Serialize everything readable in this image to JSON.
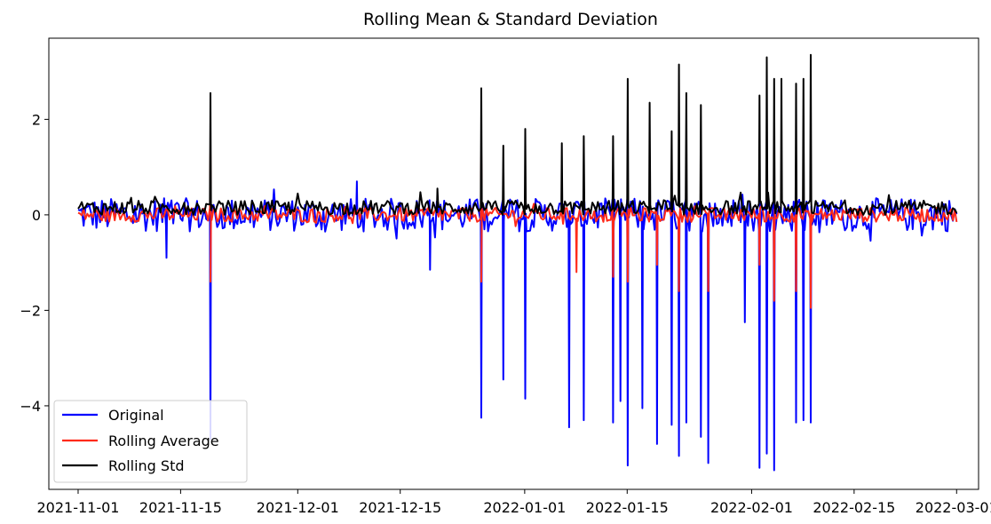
{
  "chart_data": {
    "type": "line",
    "title": "Rolling Mean & Standard Deviation",
    "xlabel": "",
    "ylabel": "",
    "x_range": [
      "2021-10-28",
      "2022-03-04"
    ],
    "ylim": [
      -5.75,
      3.7
    ],
    "x_ticks": [
      "2021-11-01",
      "2021-11-15",
      "2021-12-01",
      "2021-12-15",
      "2022-01-01",
      "2022-01-15",
      "2022-02-01",
      "2022-02-15",
      "2022-03-01"
    ],
    "y_ticks": [
      2,
      0,
      -2,
      -4
    ],
    "y_tick_labels": [
      "2",
      "0",
      "−2",
      "−4"
    ],
    "grid": false,
    "legend_position": "lower-left",
    "series": [
      {
        "name": "Original",
        "color": "#0000ff",
        "noise_range": [
          -0.35,
          0.35
        ],
        "spikes": [
          {
            "date": "2021-11-19",
            "value": -4.7
          },
          {
            "date": "2021-11-13",
            "value": -0.9
          },
          {
            "date": "2021-12-09",
            "value": 0.7
          },
          {
            "date": "2021-12-19",
            "value": -1.15
          },
          {
            "date": "2021-12-26",
            "value": -4.25
          },
          {
            "date": "2021-12-29",
            "value": -3.45
          },
          {
            "date": "2022-01-01",
            "value": -3.85
          },
          {
            "date": "2022-01-07",
            "value": -4.45
          },
          {
            "date": "2022-01-09",
            "value": -4.3
          },
          {
            "date": "2022-01-13",
            "value": -4.35
          },
          {
            "date": "2022-01-14",
            "value": -3.9
          },
          {
            "date": "2022-01-15",
            "value": -5.25
          },
          {
            "date": "2022-01-17",
            "value": -4.05
          },
          {
            "date": "2022-01-19",
            "value": -4.8
          },
          {
            "date": "2022-01-21",
            "value": -4.4
          },
          {
            "date": "2022-01-22",
            "value": -5.05
          },
          {
            "date": "2022-01-23",
            "value": -4.35
          },
          {
            "date": "2022-01-25",
            "value": -4.65
          },
          {
            "date": "2022-01-26",
            "value": -5.2
          },
          {
            "date": "2022-01-31",
            "value": -2.25
          },
          {
            "date": "2022-02-02",
            "value": -5.3
          },
          {
            "date": "2022-02-03",
            "value": -5.0
          },
          {
            "date": "2022-02-04",
            "value": -5.35
          },
          {
            "date": "2022-02-07",
            "value": -4.35
          },
          {
            "date": "2022-02-08",
            "value": -4.3
          },
          {
            "date": "2022-02-09",
            "value": -4.35
          }
        ]
      },
      {
        "name": "Rolling Average",
        "color": "#ff2a1a",
        "noise_range": [
          -0.15,
          0.15
        ],
        "spikes": [
          {
            "date": "2021-11-19",
            "value": 1.35
          },
          {
            "date": "2021-11-19",
            "value": -1.4
          },
          {
            "date": "2021-12-26",
            "value": 1.3
          },
          {
            "date": "2021-12-26",
            "value": -1.4
          },
          {
            "date": "2022-01-08",
            "value": -1.2
          },
          {
            "date": "2022-01-13",
            "value": -1.3
          },
          {
            "date": "2022-01-15",
            "value": -1.4
          },
          {
            "date": "2022-01-19",
            "value": -1.05
          },
          {
            "date": "2022-01-22",
            "value": -1.6
          },
          {
            "date": "2022-01-26",
            "value": -1.6
          },
          {
            "date": "2022-02-02",
            "value": -1.05
          },
          {
            "date": "2022-02-04",
            "value": -1.8
          },
          {
            "date": "2022-02-07",
            "value": -1.6
          },
          {
            "date": "2022-02-09",
            "value": -1.95
          }
        ]
      },
      {
        "name": "Rolling Std",
        "color": "#000000",
        "noise_range": [
          0.0,
          0.3
        ],
        "spikes": [
          {
            "date": "2021-11-19",
            "value": 2.55
          },
          {
            "date": "2021-12-20",
            "value": 0.55
          },
          {
            "date": "2021-12-26",
            "value": 2.65
          },
          {
            "date": "2021-12-29",
            "value": 1.45
          },
          {
            "date": "2022-01-01",
            "value": 1.8
          },
          {
            "date": "2022-01-06",
            "value": 1.5
          },
          {
            "date": "2022-01-09",
            "value": 1.65
          },
          {
            "date": "2022-01-13",
            "value": 1.65
          },
          {
            "date": "2022-01-15",
            "value": 2.85
          },
          {
            "date": "2022-01-18",
            "value": 2.35
          },
          {
            "date": "2022-01-21",
            "value": 1.75
          },
          {
            "date": "2022-01-22",
            "value": 3.15
          },
          {
            "date": "2022-01-23",
            "value": 2.55
          },
          {
            "date": "2022-01-25",
            "value": 2.3
          },
          {
            "date": "2022-02-02",
            "value": 2.5
          },
          {
            "date": "2022-02-03",
            "value": 3.3
          },
          {
            "date": "2022-02-04",
            "value": 2.85
          },
          {
            "date": "2022-02-05",
            "value": 2.85
          },
          {
            "date": "2022-02-07",
            "value": 2.75
          },
          {
            "date": "2022-02-08",
            "value": 2.85
          },
          {
            "date": "2022-02-09",
            "value": 3.35
          }
        ]
      }
    ]
  }
}
